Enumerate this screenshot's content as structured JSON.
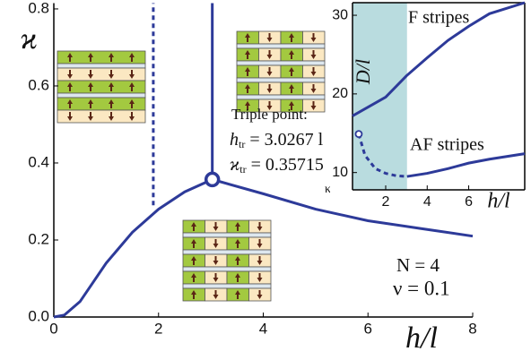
{
  "chart_data": [
    {
      "type": "line",
      "x_label": "h/l",
      "y_label": "ϰ",
      "xlim": [
        0,
        8
      ],
      "ylim": [
        0,
        0.815
      ],
      "xticks": [
        0,
        2,
        4,
        6,
        8
      ],
      "yticks": [
        {
          "value": 0,
          "label": "0.0"
        },
        0.2,
        0.4,
        0.6,
        0.8
      ],
      "series": [
        {
          "color": "#2d3a99",
          "x": [
            0,
            0.2,
            0.5,
            1,
            1.5,
            2,
            2.5,
            3.0267,
            4,
            5,
            6,
            7,
            8
          ],
          "values": [
            0,
            0.005,
            0.04,
            0.14,
            0.22,
            0.28,
            0.325,
            0.35715,
            0.32,
            0.28,
            0.25,
            0.23,
            0.21
          ]
        },
        {
          "color": "#2d3a99",
          "x": [
            3.0267,
            3.0267
          ],
          "values": [
            0.35715,
            0.815
          ]
        },
        {
          "color": "#2d3a99",
          "dashed": true,
          "x": [
            1.9,
            1.9
          ],
          "values": [
            0.29,
            0.815
          ]
        }
      ],
      "markers": [
        {
          "x": 3.0267,
          "y": 0.35715
        }
      ],
      "annotations": {
        "triple_title": "Triple point:",
        "triple_h": {
          "symbol": "h",
          "sub": "tr",
          "value_text": " = 3.0267 l"
        },
        "triple_k": {
          "symbol": "ϰ",
          "sub": "tr",
          "value_text": " = 0.35715"
        },
        "kappa": "κ",
        "n_text": "N = 4",
        "nu_text": "ν = 0.1"
      }
    },
    {
      "type": "line",
      "x_label": "h/l",
      "y_label": "D/l",
      "xlim": [
        0.4,
        8.7
      ],
      "ylim": [
        7.8,
        31.6
      ],
      "xticks": [
        2,
        4,
        6
      ],
      "yticks": [
        10,
        20,
        30
      ],
      "shade": [
        0.4,
        3.0267
      ],
      "shade_color": "#b9dcdf",
      "series": [
        {
          "name": "F stripes",
          "color": "#2d3a99",
          "x": [
            0.4,
            2,
            3,
            4,
            5,
            6,
            7,
            8.7
          ],
          "values": [
            17.2,
            19.6,
            22.3,
            24.6,
            26.8,
            28.6,
            30.2,
            31.6
          ]
        },
        {
          "name": "AF stripes",
          "color": "#2d3a99",
          "x": [
            3.0267,
            4,
            5,
            6,
            7,
            8.7
          ],
          "values": [
            9.5,
            9.9,
            10.5,
            11.2,
            11.7,
            12.4
          ]
        },
        {
          "color": "#2d3a99",
          "dashed": true,
          "x": [
            0.7,
            1,
            1.5,
            2,
            2.5,
            3.0267
          ],
          "values": [
            14.9,
            12.2,
            10.5,
            9.9,
            9.6,
            9.5
          ]
        }
      ],
      "markers": [
        {
          "x": 0.7,
          "y": 14.9
        }
      ]
    }
  ]
}
